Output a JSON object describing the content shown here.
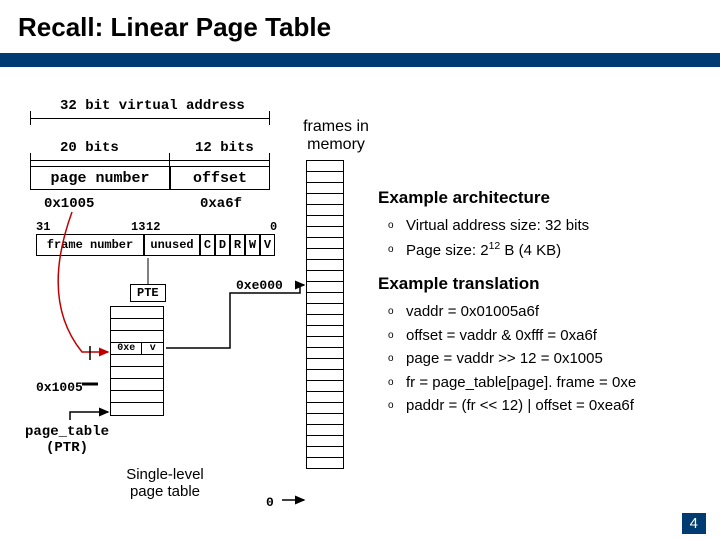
{
  "title": "Recall: Linear Page Table",
  "virtual_address": {
    "full_label": "32 bit virtual address",
    "page_bits_label": "20 bits",
    "offset_bits_label": "12 bits",
    "page_number_box": "page number",
    "offset_box": "offset",
    "page_number_value": "0x1005",
    "offset_value": "0xa6f"
  },
  "pte": {
    "msb": "31",
    "split_hi": "13",
    "split_lo": "12",
    "lsb": "0",
    "frame_label": "frame number",
    "unused_label": "unused",
    "bits": [
      "C",
      "D",
      "R",
      "W",
      "V"
    ],
    "box_label": "PTE"
  },
  "frames_label": "frames in memory",
  "frame_arrow_value": "0xe000",
  "page_table": {
    "selected_index_label": "0x1005",
    "selected_frame": "0xe",
    "selected_valid": "v",
    "nrows": 9,
    "ptr_label": "page_table\n(PTR)",
    "caption": "Single-level\npage table",
    "zero_label": "0"
  },
  "right": {
    "arch_title": "Example architecture",
    "arch_items": [
      "Virtual address size: 32 bits",
      "Page size: 2<sup>12</sup> B (4 KB)"
    ],
    "trans_title": "Example translation",
    "trans_items": [
      "vaddr = 0x01005a6f",
      "offset  = vaddr & 0xfff = 0xa6f",
      "page = vaddr >> 12 = 0x1005",
      "fr = page_table[page]. frame = 0xe",
      "paddr = (fr << 12) | offset = 0xea6f"
    ]
  },
  "page_number": "4",
  "colors": {
    "accent": "#003b71",
    "arrow_red": "#c00000"
  }
}
